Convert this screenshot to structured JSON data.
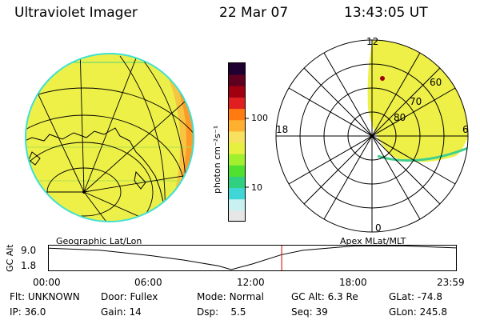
{
  "header": {
    "instrument": "Ultraviolet Imager",
    "date": "22 Mar 07",
    "time": "13:43:05 UT"
  },
  "left_panel": {
    "caption": "Geographic Lat/Lon"
  },
  "right_panel": {
    "caption": "Apex MLat/MLT",
    "mlt_labels": [
      "12",
      "18",
      "6",
      "0"
    ],
    "mlat_labels": [
      "60",
      "70",
      "80"
    ]
  },
  "colorbar": {
    "title": "photon cm⁻²s⁻¹",
    "ticks": [
      "100",
      "10"
    ],
    "colors": [
      "#e6e6e6",
      "#c9f0f2",
      "#40d6d6",
      "#30d080",
      "#50e030",
      "#a0f030",
      "#e6f040",
      "#f8e060",
      "#ffb030",
      "#ff7a10",
      "#e02020",
      "#a00010",
      "#600020",
      "#200030"
    ]
  },
  "altitude_plot": {
    "ylabel": "GC Alt",
    "yticks": [
      "9.0",
      "1.8"
    ],
    "xticks": [
      "00:00",
      "06:00",
      "12:00",
      "18:00",
      "23:59"
    ],
    "trace": [
      {
        "t": "00:00",
        "alt": 8.2
      },
      {
        "t": "03:00",
        "alt": 7.6
      },
      {
        "t": "06:00",
        "alt": 6.0
      },
      {
        "t": "08:00",
        "alt": 4.6
      },
      {
        "t": "10:00",
        "alt": 2.9
      },
      {
        "t": "10:45",
        "alt": 1.8
      },
      {
        "t": "12:00",
        "alt": 3.5
      },
      {
        "t": "13:43",
        "alt": 6.3
      },
      {
        "t": "15:00",
        "alt": 7.6
      },
      {
        "t": "18:00",
        "alt": 8.9
      },
      {
        "t": "21:00",
        "alt": 8.9
      },
      {
        "t": "23:59",
        "alt": 8.3
      }
    ],
    "current_time_marker": "13:43",
    "marker_color": "#d00000"
  },
  "status": {
    "row1": [
      {
        "label": "Flt:",
        "value": "UNKNOWN"
      },
      {
        "label": "Door:",
        "value": "Fullex"
      },
      {
        "label": "Mode:",
        "value": "Normal"
      },
      {
        "label": "GC Alt:",
        "value": "6.3 Re"
      },
      {
        "label": "GLat:",
        "value": "-74.8"
      }
    ],
    "row2": [
      {
        "label": "IP:",
        "value": "36.0"
      },
      {
        "label": "Gain:",
        "value": "14"
      },
      {
        "label": "Dsp:",
        "value": "5.5"
      },
      {
        "label": "Seq:",
        "value": "39"
      },
      {
        "label": "GLon:",
        "value": "245.8"
      }
    ]
  }
}
